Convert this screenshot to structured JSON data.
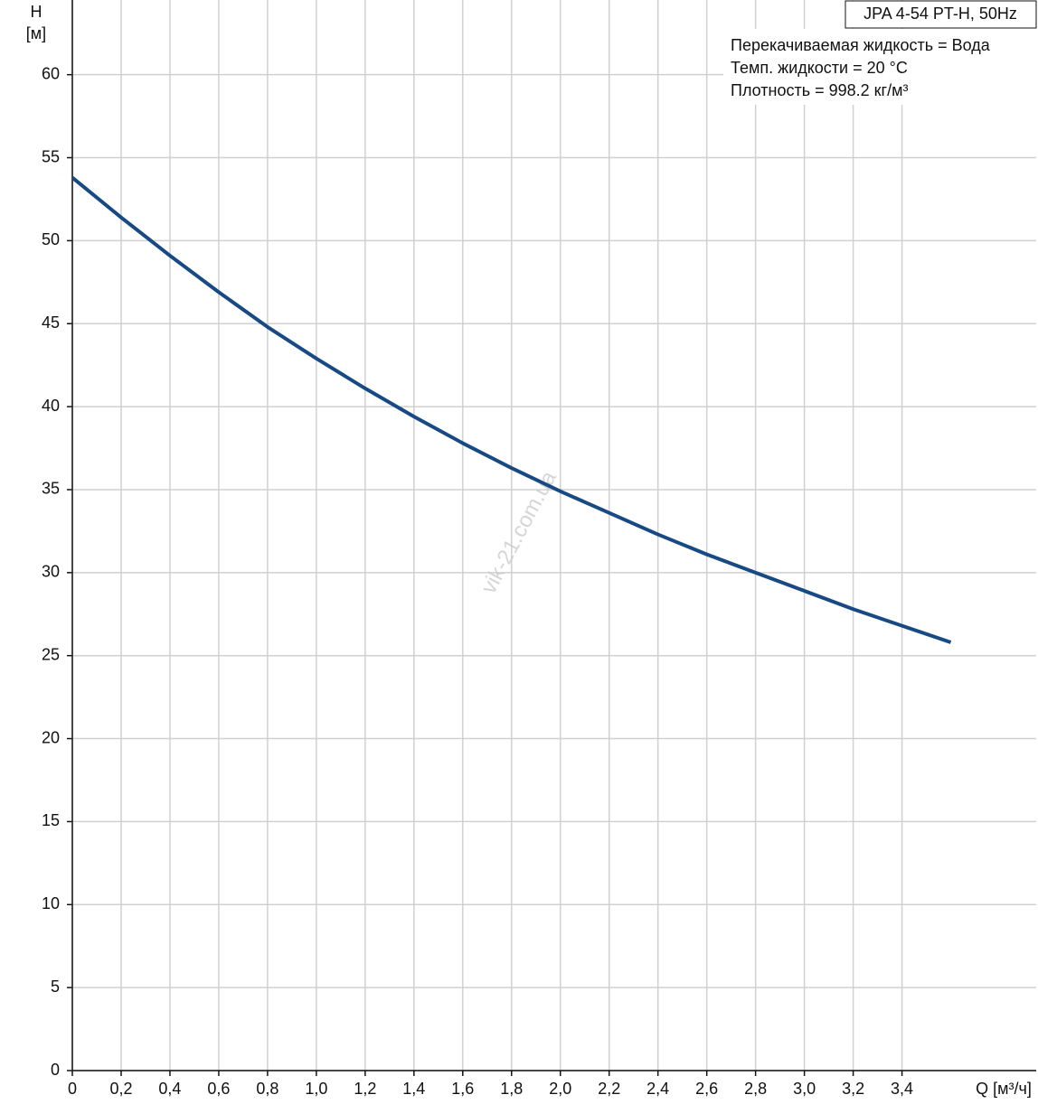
{
  "chart_data": {
    "type": "line",
    "title": "JPA 4-54 PT-H, 50Hz",
    "annotations": [
      "Перекачиваемая жидкость = Вода",
      "Темп. жидкости = 20 °C",
      "Плотность = 998.2 кг/м³"
    ],
    "watermark": "vik-21.com.ua",
    "y_label": [
      "H",
      "[м]"
    ],
    "x_label": "Q [м³/ч]",
    "x": [
      0,
      0.2,
      0.4,
      0.6,
      0.8,
      1.0,
      1.2,
      1.4,
      1.6,
      1.8,
      2.0,
      2.2,
      2.4,
      2.6,
      2.8,
      3.0,
      3.2,
      3.4,
      3.6
    ],
    "series": [
      {
        "name": "JPA 4-54 PT-H",
        "color": "#174a84",
        "values": [
          53.8,
          51.4,
          49.1,
          46.9,
          44.8,
          42.9,
          41.1,
          39.4,
          37.8,
          36.3,
          34.9,
          33.6,
          32.3,
          31.1,
          30.0,
          28.9,
          27.8,
          26.8,
          25.8
        ]
      }
    ],
    "xlim": [
      0,
      3.95
    ],
    "ylim": [
      0,
      64.5
    ],
    "xticks": [
      0,
      {
        "value": 0.2,
        "label": "0,2"
      },
      {
        "value": 0.4,
        "label": "0,4"
      },
      {
        "value": 0.6,
        "label": "0,6"
      },
      {
        "value": 0.8,
        "label": "0,8"
      },
      {
        "value": 1.0,
        "label": "1,0"
      },
      {
        "value": 1.2,
        "label": "1,2"
      },
      {
        "value": 1.4,
        "label": "1,4"
      },
      {
        "value": 1.6,
        "label": "1,6"
      },
      {
        "value": 1.8,
        "label": "1,8"
      },
      {
        "value": 2.0,
        "label": "2,0"
      },
      {
        "value": 2.2,
        "label": "2,2"
      },
      {
        "value": 2.4,
        "label": "2,4"
      },
      {
        "value": 2.6,
        "label": "2,6"
      },
      {
        "value": 2.8,
        "label": "2,8"
      },
      {
        "value": 3.0,
        "label": "3,0"
      },
      {
        "value": 3.2,
        "label": "3,2"
      },
      {
        "value": 3.4,
        "label": "3,4"
      }
    ],
    "yticks": [
      0,
      5,
      10,
      15,
      20,
      25,
      30,
      35,
      40,
      45,
      50,
      55,
      60
    ],
    "grid": true
  }
}
